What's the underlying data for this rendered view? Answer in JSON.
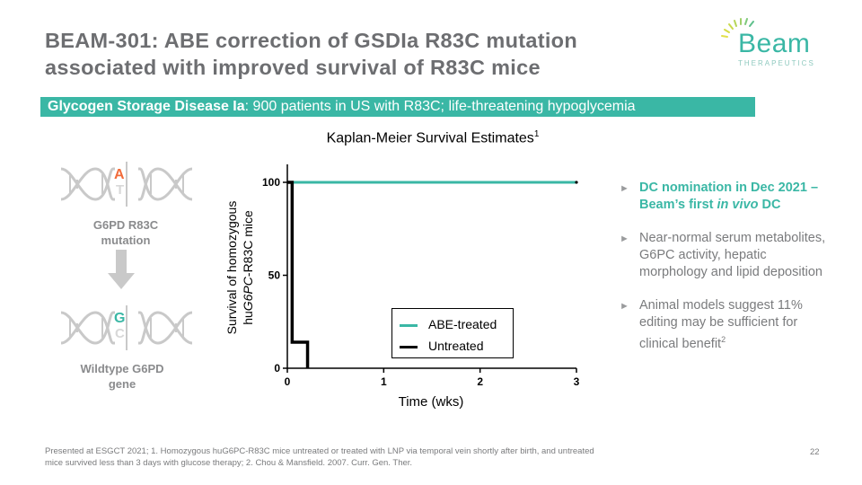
{
  "slide": {
    "title_line1": "BEAM-301: ABE correction of GSDIa R83C mutation",
    "title_line2": "associated with improved survival of R83C mice",
    "logo_text": "Beam",
    "logo_sub": "THERAPEUTICS",
    "banner_bold": "Glycogen Storage Disease Ia",
    "banner_rest": ": 900 patients in US with R83C; life-threatening hypoglycemia",
    "page_number": "22"
  },
  "diagram": {
    "mutant_top": "A",
    "mutant_bottom": "T",
    "mutant_label_line1": "G6PD R83C",
    "mutant_label_line2": "mutation",
    "wild_top": "G",
    "wild_bottom": "C",
    "wild_label_line1": "Wildtype G6PD",
    "wild_label_line2": "gene"
  },
  "bullets": {
    "b1_part1": "DC nomination in Dec 2021 – Beam’s first ",
    "b1_italic": "in vivo",
    "b1_part2": " DC",
    "b2": "Near-normal serum metabolites, G6PC activity, hepatic morphology and lipid deposition",
    "b3_main": "Animal models suggest 11% editing may be sufficient for clinical benefit",
    "b3_sup": "2"
  },
  "footer": {
    "text": "Presented at ESGCT 2021;  1. Homozygous huG6PC-R83C mice untreated or treated with LNP via temporal vein shortly after birth, and untreated mice survived less than 3 days with glucose therapy;  2. Chou & Mansfield. 2007. Curr. Gen. Ther."
  },
  "colors": {
    "accent": "#3ab7a5",
    "text_gray": "#6d6e71",
    "mutation_orange": "#f26b3a"
  },
  "chart_data": {
    "type": "line",
    "step": true,
    "title": "Kaplan-Meier Survival Estimates",
    "title_sup": "1",
    "xlabel": "Time (wks)",
    "ylabel_line1": "Survival of homozygous",
    "ylabel_line2_pre": "hu",
    "ylabel_line2_italic": "G6PC",
    "ylabel_line2_post": "-R83C mice",
    "xlim": [
      0,
      3
    ],
    "ylim": [
      0,
      100
    ],
    "xticks": [
      "0",
      "1",
      "2",
      "3"
    ],
    "yticks": [
      "0",
      "50",
      "100"
    ],
    "legend_position": "bottom-center",
    "series": [
      {
        "name": "ABE-treated",
        "color": "#3ab7a5",
        "x": [
          0,
          3
        ],
        "y": [
          100,
          100
        ]
      },
      {
        "name": "Untreated",
        "color": "#000000",
        "x": [
          0,
          0.05,
          0.05,
          0.21,
          0.21
        ],
        "y": [
          100,
          100,
          14,
          14,
          0
        ]
      }
    ]
  }
}
